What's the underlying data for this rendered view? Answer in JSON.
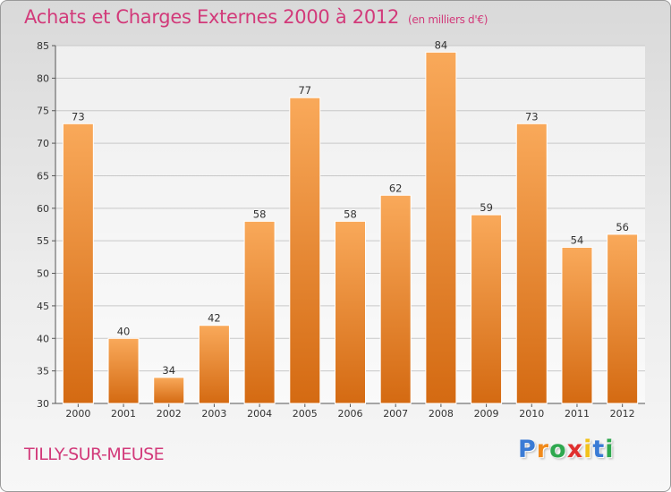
{
  "header": {
    "title": "Achats et Charges Externes 2000 à 2012",
    "subtitle": "(en milliers d'€)"
  },
  "footer": {
    "city": "TILLY-SUR-MEUSE",
    "logo": {
      "letters": [
        "P",
        "r",
        "o",
        "x",
        "i",
        "t",
        "i"
      ],
      "colors": [
        "#3a7bd5",
        "#f08a1c",
        "#2fa84f",
        "#e0302f",
        "#f2c21b",
        "#3a7bd5",
        "#2fa84f"
      ]
    }
  },
  "colors": {
    "title": "#d23a7a",
    "bar_top": "#f9a95a",
    "bar_bottom": "#d46a12",
    "grid": "#c8c8c8"
  },
  "chart_data": {
    "type": "bar",
    "title": "Achats et Charges Externes 2000 à 2012",
    "subtitle": "(en milliers d'€)",
    "categories": [
      "2000",
      "2001",
      "2002",
      "2003",
      "2004",
      "2005",
      "2006",
      "2007",
      "2008",
      "2009",
      "2010",
      "2011",
      "2012"
    ],
    "values": [
      73,
      40,
      34,
      42,
      58,
      77,
      58,
      62,
      84,
      59,
      73,
      54,
      56
    ],
    "ylim": [
      30,
      85
    ],
    "yticks": [
      30,
      35,
      40,
      45,
      50,
      55,
      60,
      65,
      70,
      75,
      80,
      85
    ],
    "grid": true,
    "xlabel": "",
    "ylabel": ""
  }
}
